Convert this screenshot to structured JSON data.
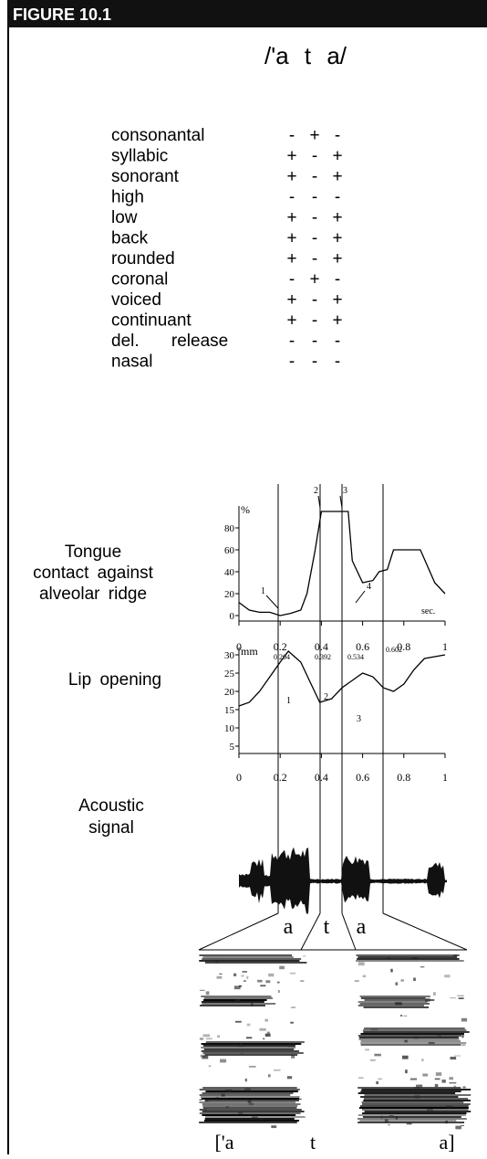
{
  "header": {
    "title": "FIGURE 10.1"
  },
  "transcription": "/'a t a/",
  "features": {
    "rows": [
      {
        "label": "consonantal",
        "values": [
          "-",
          "+",
          "-"
        ]
      },
      {
        "label": "syllabic",
        "values": [
          "+",
          "-",
          "+"
        ]
      },
      {
        "label": "sonorant",
        "values": [
          "+",
          "-",
          "+"
        ]
      },
      {
        "label": "high",
        "values": [
          "-",
          "-",
          "-"
        ]
      },
      {
        "label": "low",
        "values": [
          "+",
          "-",
          "+"
        ]
      },
      {
        "label": "back",
        "values": [
          "+",
          "-",
          "+"
        ]
      },
      {
        "label": "rounded",
        "values": [
          "+",
          "-",
          "+"
        ]
      },
      {
        "label": "coronal",
        "values": [
          "-",
          "+",
          "-"
        ]
      },
      {
        "label": "voiced",
        "values": [
          "+",
          "-",
          "+"
        ]
      },
      {
        "label": "continuant",
        "values": [
          "+",
          "-",
          "+"
        ]
      },
      {
        "label": "del. release",
        "values": [
          "-",
          "-",
          "-"
        ]
      },
      {
        "label": "nasal",
        "values": [
          "-",
          "-",
          "-"
        ]
      }
    ]
  },
  "tongue_plot": {
    "label": [
      "Tongue",
      "contact against",
      "alveolar ridge"
    ],
    "y_unit": "%",
    "x_unit": "sec.",
    "xlim": [
      0,
      1
    ],
    "ylim": [
      -5,
      100
    ],
    "xticks": [
      0,
      0.2,
      0.4,
      0.6,
      0.8,
      1
    ],
    "yticks": [
      0,
      20,
      40,
      60,
      80
    ],
    "markers": [
      "1",
      "2",
      "3",
      "4"
    ],
    "times": [
      "0.204",
      "0.392",
      "0.534",
      "0.602"
    ],
    "x": [
      0,
      0.05,
      0.1,
      0.15,
      0.2,
      0.25,
      0.3,
      0.33,
      0.37,
      0.4,
      0.45,
      0.5,
      0.53,
      0.55,
      0.6,
      0.65,
      0.68,
      0.72,
      0.75,
      0.88,
      0.95,
      1
    ],
    "y": [
      12,
      5,
      3,
      3,
      0,
      2,
      5,
      20,
      60,
      95,
      95,
      95,
      95,
      50,
      30,
      32,
      40,
      42,
      60,
      60,
      30,
      20
    ]
  },
  "lip_plot": {
    "label": "Lip opening",
    "y_unit": "mm",
    "xlim": [
      0,
      1
    ],
    "ylim": [
      3,
      32
    ],
    "xticks": [
      0,
      0.2,
      0.4,
      0.6,
      0.8,
      1
    ],
    "yticks": [
      5,
      10,
      15,
      20,
      25,
      30
    ],
    "markers": [
      "1",
      "2",
      "3"
    ],
    "x": [
      0,
      0.05,
      0.1,
      0.15,
      0.2,
      0.24,
      0.3,
      0.35,
      0.392,
      0.45,
      0.5,
      0.55,
      0.6,
      0.65,
      0.7,
      0.75,
      0.8,
      0.85,
      0.9,
      1
    ],
    "y": [
      16,
      17,
      20,
      24,
      28,
      31,
      28,
      22,
      17,
      18,
      21,
      23,
      25,
      24,
      21,
      20,
      22,
      26,
      29,
      30
    ]
  },
  "acoustic": {
    "label": [
      "Acoustic",
      "signal"
    ],
    "segments": [
      "a",
      "t",
      "a"
    ]
  },
  "spectrogram": {
    "transcription": [
      "['a",
      "t",
      "a]"
    ]
  }
}
